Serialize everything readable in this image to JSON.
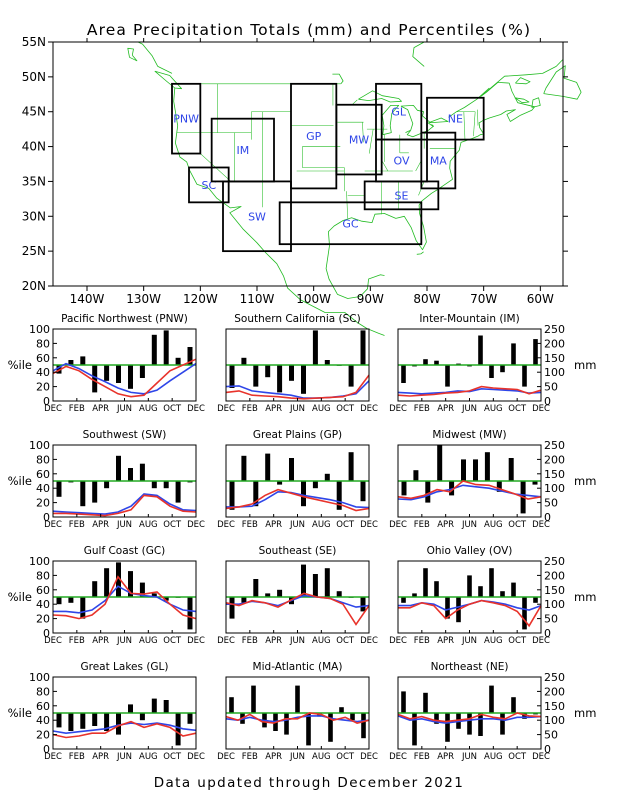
{
  "page": {
    "title": "Area Precipitation Totals (mm) and Percentiles (%)",
    "footer": "Data updated through December 2021"
  },
  "colors": {
    "land_outline": "#22bb22",
    "region_box": "#000000",
    "region_label": "#2f46e8",
    "reference_line": "#22aa22",
    "bar": "#000000",
    "percentile_line": "#e8332b",
    "total_line": "#2f46e8"
  },
  "map": {
    "lat_labels": [
      "55N",
      "50N",
      "45N",
      "40N",
      "35N",
      "30N",
      "25N",
      "20N"
    ],
    "lon_labels": [
      "140W",
      "130W",
      "120W",
      "110W",
      "100W",
      "90W",
      "80W",
      "70W",
      "60W"
    ],
    "lat_range": [
      20,
      55
    ],
    "lon_range": [
      -146,
      -56
    ],
    "regions": [
      {
        "code": "PNW",
        "boxes": [
          [
            -125,
            39,
            -120,
            49
          ]
        ]
      },
      {
        "code": "SC",
        "boxes": [
          [
            -122,
            32,
            -115,
            37
          ]
        ]
      },
      {
        "code": "IM",
        "boxes": [
          [
            -118,
            35,
            -107,
            44
          ]
        ]
      },
      {
        "code": "SW",
        "boxes": [
          [
            -116,
            25,
            -104,
            35
          ]
        ]
      },
      {
        "code": "GP",
        "boxes": [
          [
            -104,
            34,
            -96,
            49
          ]
        ]
      },
      {
        "code": "MW",
        "boxes": [
          [
            -96,
            36,
            -88,
            46
          ]
        ]
      },
      {
        "code": "GL",
        "boxes": [
          [
            -89,
            41,
            -81,
            49
          ]
        ]
      },
      {
        "code": "OV",
        "boxes": [
          [
            -89,
            35,
            -80,
            41
          ]
        ]
      },
      {
        "code": "SE",
        "boxes": [
          [
            -91,
            31,
            -78,
            35
          ]
        ]
      },
      {
        "code": "GC",
        "boxes": [
          [
            -106,
            26,
            -81,
            32
          ]
        ]
      },
      {
        "code": "MA",
        "boxes": [
          [
            -81,
            34,
            -75,
            42
          ]
        ]
      },
      {
        "code": "NE",
        "boxes": [
          [
            -80,
            41,
            -70,
            47
          ]
        ]
      }
    ]
  },
  "panel_axes": {
    "months": [
      "DEC",
      "FEB",
      "APR",
      "JUN",
      "AUG",
      "OCT",
      "DEC"
    ],
    "pct_ticks": [
      "100",
      "80",
      "60",
      "40",
      "20",
      "0"
    ],
    "mm_ticks": [
      "250",
      "200",
      "150",
      "100",
      "50",
      "0"
    ],
    "left_label": "%ile",
    "right_label": "mm",
    "pct_range": [
      0,
      100
    ],
    "mm_range": [
      0,
      250
    ],
    "reference_percentile": 50
  },
  "chart_data": [
    {
      "title": "Pacific Northwest (PNW)",
      "type": "bar",
      "percentile_bars": [
        38,
        57,
        62,
        12,
        28,
        25,
        17,
        32,
        92,
        98,
        60,
        75
      ],
      "percentile_line": [
        38,
        48,
        42,
        30,
        20,
        10,
        6,
        8,
        25,
        42,
        50,
        58
      ],
      "total_line": [
        42,
        52,
        45,
        35,
        27,
        18,
        12,
        10,
        15,
        28,
        40,
        52
      ]
    },
    {
      "title": "Southern California (SC)",
      "type": "bar",
      "percentile_bars": [
        18,
        60,
        20,
        33,
        12,
        28,
        10,
        98,
        57,
        50,
        20,
        98
      ],
      "percentile_line": [
        12,
        14,
        8,
        7,
        6,
        4,
        3,
        4,
        5,
        6,
        12,
        36
      ],
      "total_line": [
        20,
        21,
        14,
        12,
        10,
        8,
        4,
        4,
        5,
        7,
        10,
        28
      ]
    },
    {
      "title": "Inter-Mountain (IM)",
      "type": "bar",
      "percentile_bars": [
        25,
        48,
        58,
        56,
        20,
        52,
        48,
        91,
        32,
        40,
        80,
        20,
        86
      ],
      "percentile_line": [
        8,
        7,
        8,
        9,
        11,
        12,
        14,
        20,
        18,
        17,
        16,
        10,
        15
      ],
      "total_line": [
        12,
        11,
        10,
        11,
        12,
        14,
        13,
        17,
        16,
        15,
        14,
        11,
        12
      ]
    },
    {
      "title": "Southwest (SW)",
      "type": "bar",
      "percentile_bars": [
        28,
        48,
        15,
        20,
        40,
        85,
        68,
        74,
        40,
        40,
        20,
        48
      ],
      "percentile_line": [
        5,
        5,
        4,
        3,
        2,
        5,
        10,
        30,
        28,
        15,
        8,
        7
      ],
      "total_line": [
        8,
        7,
        6,
        5,
        4,
        7,
        15,
        32,
        30,
        18,
        10,
        9
      ]
    },
    {
      "title": "Great Plains (GP)",
      "type": "bar",
      "percentile_bars": [
        10,
        85,
        15,
        88,
        45,
        82,
        15,
        40,
        60,
        10,
        90,
        22
      ],
      "percentile_line": [
        12,
        14,
        18,
        30,
        38,
        33,
        28,
        24,
        20,
        16,
        9,
        12
      ],
      "total_line": [
        14,
        14,
        15,
        24,
        35,
        34,
        30,
        27,
        24,
        20,
        14,
        13
      ]
    },
    {
      "title": "Midwest (MW)",
      "type": "bar",
      "percentile_bars": [
        30,
        65,
        20,
        100,
        30,
        80,
        80,
        90,
        35,
        82,
        5,
        45
      ],
      "percentile_line": [
        28,
        26,
        30,
        38,
        35,
        50,
        45,
        44,
        38,
        32,
        25,
        28
      ],
      "total_line": [
        25,
        24,
        28,
        35,
        38,
        44,
        42,
        40,
        36,
        32,
        30,
        28
      ]
    },
    {
      "title": "Gulf Coast (GC)",
      "type": "bar",
      "percentile_bars": [
        40,
        42,
        20,
        72,
        90,
        98,
        86,
        70,
        55,
        45,
        50,
        5
      ],
      "percentile_line": [
        25,
        24,
        20,
        25,
        40,
        78,
        55,
        54,
        57,
        40,
        25,
        20
      ],
      "total_line": [
        30,
        30,
        28,
        32,
        45,
        65,
        55,
        52,
        50,
        40,
        32,
        30
      ]
    },
    {
      "title": "Southeast (SE)",
      "type": "bar",
      "percentile_bars": [
        20,
        42,
        75,
        55,
        60,
        40,
        95,
        82,
        90,
        58,
        50,
        30
      ],
      "percentile_line": [
        42,
        38,
        45,
        42,
        36,
        46,
        55,
        50,
        48,
        40,
        12,
        38
      ],
      "total_line": [
        40,
        40,
        44,
        42,
        38,
        45,
        52,
        50,
        48,
        42,
        36,
        38
      ]
    },
    {
      "title": "Ohio Valley (OV)",
      "type": "bar",
      "percentile_bars": [
        42,
        55,
        90,
        72,
        20,
        15,
        80,
        65,
        90,
        58,
        70,
        5,
        42
      ],
      "percentile_line": [
        35,
        35,
        42,
        38,
        20,
        32,
        40,
        45,
        42,
        38,
        30,
        10,
        38
      ],
      "total_line": [
        38,
        38,
        42,
        40,
        32,
        36,
        40,
        45,
        43,
        40,
        35,
        32,
        38
      ]
    },
    {
      "title": "Great Lakes (GL)",
      "type": "bar",
      "percentile_bars": [
        30,
        25,
        28,
        32,
        25,
        20,
        62,
        40,
        70,
        68,
        5,
        35
      ],
      "percentile_line": [
        20,
        16,
        18,
        22,
        22,
        32,
        38,
        30,
        35,
        30,
        18,
        22
      ],
      "total_line": [
        25,
        22,
        24,
        26,
        28,
        33,
        36,
        34,
        36,
        33,
        28,
        26
      ]
    },
    {
      "title": "Mid-Atlantic (MA)",
      "type": "bar",
      "percentile_bars": [
        72,
        35,
        88,
        30,
        25,
        20,
        88,
        5,
        45,
        10,
        58,
        40,
        15
      ],
      "percentile_line": [
        45,
        40,
        48,
        38,
        36,
        42,
        42,
        50,
        48,
        40,
        44,
        36,
        40
      ],
      "total_line": [
        42,
        40,
        44,
        40,
        38,
        40,
        44,
        46,
        46,
        42,
        40,
        38,
        40
      ]
    },
    {
      "title": "Northeast (NE)",
      "type": "bar",
      "percentile_bars": [
        80,
        5,
        78,
        35,
        10,
        28,
        20,
        18,
        88,
        20,
        72,
        42,
        48
      ],
      "percentile_line": [
        48,
        42,
        45,
        40,
        38,
        40,
        42,
        48,
        44,
        42,
        50,
        46,
        45
      ],
      "total_line": [
        46,
        40,
        42,
        38,
        36,
        38,
        40,
        42,
        42,
        40,
        44,
        44,
        45
      ]
    }
  ]
}
